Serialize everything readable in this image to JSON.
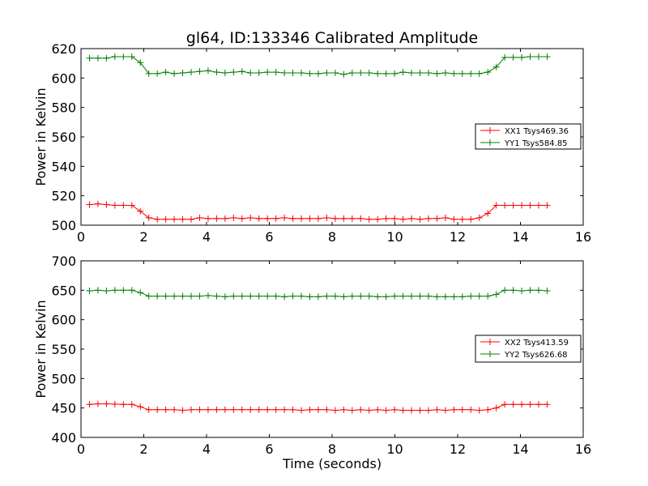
{
  "title": "gl64, ID:133346 Calibrated Amplitude",
  "xlabel": "Time (seconds)",
  "chart_data": [
    {
      "type": "line",
      "xlabel": "",
      "ylabel": "Power in Kelvin",
      "xlim": [
        0,
        16
      ],
      "ylim": [
        500,
        620
      ],
      "xticks": [
        0,
        2,
        4,
        6,
        8,
        10,
        12,
        14,
        16
      ],
      "yticks": [
        500,
        520,
        540,
        560,
        580,
        600,
        620
      ],
      "grid": false,
      "legend_position": "right",
      "x": [
        0.27,
        0.54,
        0.81,
        1.08,
        1.35,
        1.62,
        1.89,
        2.16,
        2.43,
        2.7,
        2.97,
        3.24,
        3.51,
        3.78,
        4.05,
        4.32,
        4.59,
        4.86,
        5.13,
        5.4,
        5.67,
        5.94,
        6.21,
        6.48,
        6.75,
        7.02,
        7.29,
        7.56,
        7.83,
        8.1,
        8.37,
        8.64,
        8.91,
        9.18,
        9.45,
        9.72,
        9.99,
        10.26,
        10.53,
        10.8,
        11.07,
        11.34,
        11.61,
        11.88,
        12.15,
        12.42,
        12.69,
        12.96,
        13.23,
        13.5,
        13.77,
        14.04,
        14.31,
        14.58,
        14.85
      ],
      "series": [
        {
          "name": "XX1 Tsys469.36",
          "color": "#ff0000",
          "values": [
            514,
            514.5,
            514,
            513.5,
            513.5,
            513.5,
            509.5,
            505,
            504,
            504,
            504,
            504,
            504,
            505,
            504.5,
            504.5,
            504.5,
            505,
            504.5,
            505,
            504.5,
            504.5,
            504.5,
            505,
            504.5,
            504.5,
            504.5,
            504.5,
            505,
            504.5,
            504.5,
            504.5,
            504.5,
            504,
            504,
            504.5,
            504.5,
            504,
            504.5,
            504,
            504.5,
            504.5,
            505,
            504,
            504,
            504,
            505,
            508,
            513.5,
            513.5,
            513.5,
            513.5,
            513.5,
            513.5,
            513.5
          ]
        },
        {
          "name": "YY1 Tsys584.85",
          "color": "#008000",
          "values": [
            613.5,
            613.5,
            613.5,
            614.5,
            614.5,
            614.5,
            610.5,
            603,
            603,
            604,
            603,
            603.5,
            604,
            604.5,
            605,
            604,
            603.5,
            604,
            604.5,
            603.5,
            603.5,
            604,
            604,
            603.5,
            603.5,
            603.5,
            603,
            603,
            603.5,
            603.5,
            602.5,
            603.5,
            603.5,
            603.5,
            603,
            603,
            603,
            604,
            603.5,
            603.5,
            603.5,
            603,
            603.5,
            603,
            603,
            603,
            603,
            604,
            607.5,
            614,
            614,
            614,
            614.5,
            614.5,
            614.5
          ]
        }
      ]
    },
    {
      "type": "line",
      "xlabel": "Time (seconds)",
      "ylabel": "Power in Kelvin",
      "xlim": [
        0,
        16
      ],
      "ylim": [
        400,
        700
      ],
      "xticks": [
        0,
        2,
        4,
        6,
        8,
        10,
        12,
        14,
        16
      ],
      "yticks": [
        400,
        450,
        500,
        550,
        600,
        650,
        700
      ],
      "grid": false,
      "legend_position": "right",
      "x": [
        0.27,
        0.54,
        0.81,
        1.08,
        1.35,
        1.62,
        1.89,
        2.16,
        2.43,
        2.7,
        2.97,
        3.24,
        3.51,
        3.78,
        4.05,
        4.32,
        4.59,
        4.86,
        5.13,
        5.4,
        5.67,
        5.94,
        6.21,
        6.48,
        6.75,
        7.02,
        7.29,
        7.56,
        7.83,
        8.1,
        8.37,
        8.64,
        8.91,
        9.18,
        9.45,
        9.72,
        9.99,
        10.26,
        10.53,
        10.8,
        11.07,
        11.34,
        11.61,
        11.88,
        12.15,
        12.42,
        12.69,
        12.96,
        13.23,
        13.5,
        13.77,
        14.04,
        14.31,
        14.58,
        14.85
      ],
      "series": [
        {
          "name": "XX2 Tsys413.59",
          "color": "#ff0000",
          "values": [
            456,
            457,
            457,
            456.5,
            456,
            456,
            452,
            447,
            447,
            447,
            447,
            446,
            447,
            447,
            447,
            447,
            447,
            447,
            447,
            447,
            447,
            447,
            447,
            447,
            447,
            446,
            447,
            447,
            447,
            446,
            447,
            446,
            447,
            446,
            447,
            446,
            447,
            446,
            446,
            446,
            446,
            447,
            446,
            447,
            447,
            447,
            446,
            447,
            450,
            456,
            456,
            456,
            456,
            456,
            456
          ]
        },
        {
          "name": "YY2 Tsys626.68",
          "color": "#008000",
          "values": [
            649,
            650,
            649,
            650,
            650,
            650,
            646,
            640,
            640,
            640,
            640,
            640,
            640,
            640,
            641,
            640,
            639,
            640,
            640,
            640,
            640,
            640,
            640,
            639,
            640,
            640,
            639,
            639,
            640,
            640,
            639,
            640,
            640,
            640,
            639,
            639,
            640,
            640,
            640,
            640,
            640,
            639,
            639,
            639,
            639,
            640,
            640,
            640,
            643,
            650,
            650,
            649,
            650,
            650,
            649
          ]
        }
      ]
    }
  ]
}
